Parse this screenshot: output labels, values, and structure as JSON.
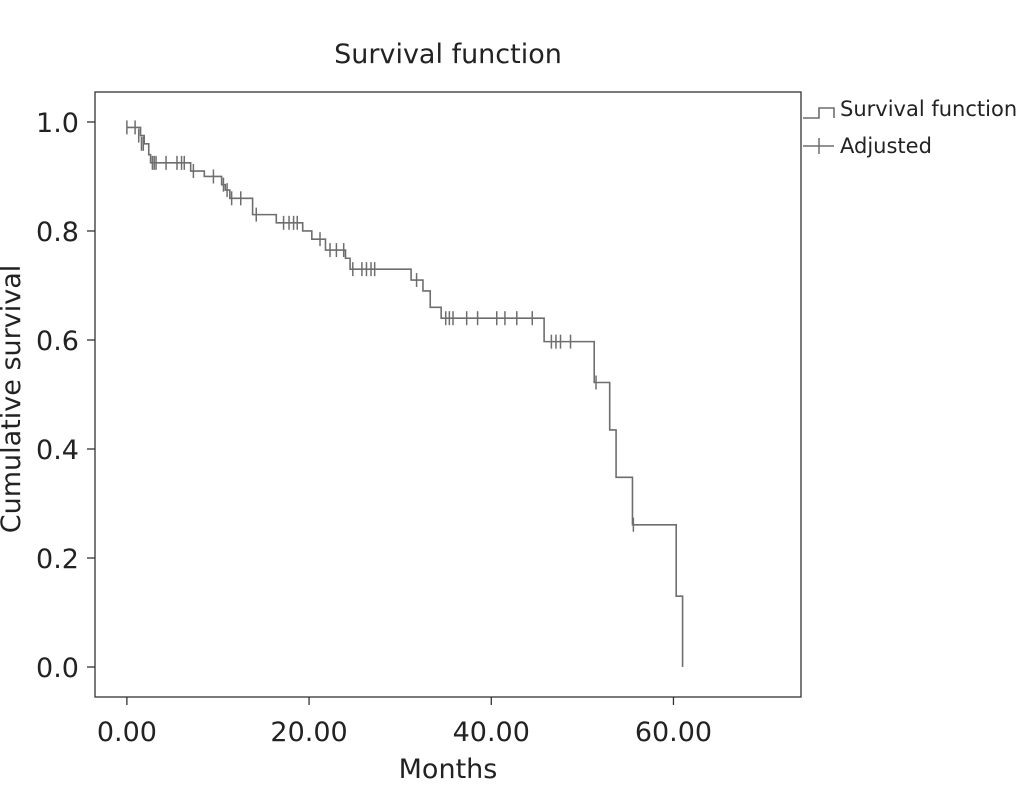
{
  "chart_data": {
    "type": "line",
    "title": "Survival function",
    "xlabel": "Months",
    "ylabel": "Cumulative survival",
    "xlim": [
      -3.5,
      74
    ],
    "ylim": [
      -0.055,
      1.055
    ],
    "xticks": [
      0,
      20,
      40,
      60
    ],
    "xtick_labels": [
      "0.00",
      "20.00",
      "40.00",
      "60.00"
    ],
    "yticks": [
      0,
      0.2,
      0.4,
      0.6,
      0.8,
      1.0
    ],
    "ytick_labels": [
      "0.0",
      "0.2",
      "0.4",
      "0.6",
      "0.8",
      "1.0"
    ],
    "grid": false,
    "legend_position": "top-right, outside plot",
    "series": [
      {
        "name": "Survival function",
        "style": "step",
        "color": "#6e6e6e",
        "steps": [
          [
            0,
            0.99
          ],
          [
            1.5,
            0.975
          ],
          [
            1.9,
            0.96
          ],
          [
            2.4,
            0.94
          ],
          [
            2.6,
            0.925
          ],
          [
            7.0,
            0.91
          ],
          [
            8.5,
            0.9
          ],
          [
            10.4,
            0.885
          ],
          [
            10.8,
            0.875
          ],
          [
            11.3,
            0.86
          ],
          [
            13.8,
            0.83
          ],
          [
            16.4,
            0.815
          ],
          [
            19.3,
            0.8
          ],
          [
            20.3,
            0.785
          ],
          [
            21.8,
            0.765
          ],
          [
            24.0,
            0.75
          ],
          [
            24.5,
            0.73
          ],
          [
            31.2,
            0.71
          ],
          [
            32.5,
            0.69
          ],
          [
            33.3,
            0.66
          ],
          [
            34.5,
            0.64
          ],
          [
            45.8,
            0.597
          ],
          [
            51.3,
            0.522
          ],
          [
            53.0,
            0.435
          ],
          [
            53.7,
            0.348
          ],
          [
            55.5,
            0.261
          ],
          [
            60.3,
            0.13
          ],
          [
            61.0,
            0.0
          ]
        ]
      },
      {
        "name": "Adjusted",
        "style": "censored-marks",
        "color": "#6e6e6e",
        "x": [
          0,
          0.9,
          1.3,
          1.6,
          1.8,
          2.8,
          3.0,
          3.2,
          4.3,
          5.5,
          6.0,
          6.3,
          7.3,
          9.5,
          10.6,
          11.0,
          11.5,
          12.5,
          14.2,
          17.2,
          17.8,
          18.3,
          18.7,
          21.2,
          22.3,
          23.0,
          23.8,
          24.8,
          25.8,
          26.3,
          26.8,
          27.2,
          31.8,
          35.0,
          35.4,
          35.8,
          37.3,
          38.5,
          40.6,
          41.5,
          42.8,
          44.5,
          46.6,
          47.1,
          47.6,
          48.7,
          51.5,
          55.6
        ],
        "y": [
          0.99,
          0.99,
          0.975,
          0.96,
          0.96,
          0.925,
          0.925,
          0.925,
          0.925,
          0.925,
          0.925,
          0.925,
          0.91,
          0.9,
          0.885,
          0.875,
          0.86,
          0.86,
          0.83,
          0.815,
          0.815,
          0.815,
          0.815,
          0.785,
          0.765,
          0.765,
          0.765,
          0.73,
          0.73,
          0.73,
          0.73,
          0.73,
          0.71,
          0.64,
          0.64,
          0.64,
          0.64,
          0.64,
          0.64,
          0.64,
          0.64,
          0.64,
          0.597,
          0.597,
          0.597,
          0.597,
          0.522,
          0.261
        ]
      }
    ]
  }
}
